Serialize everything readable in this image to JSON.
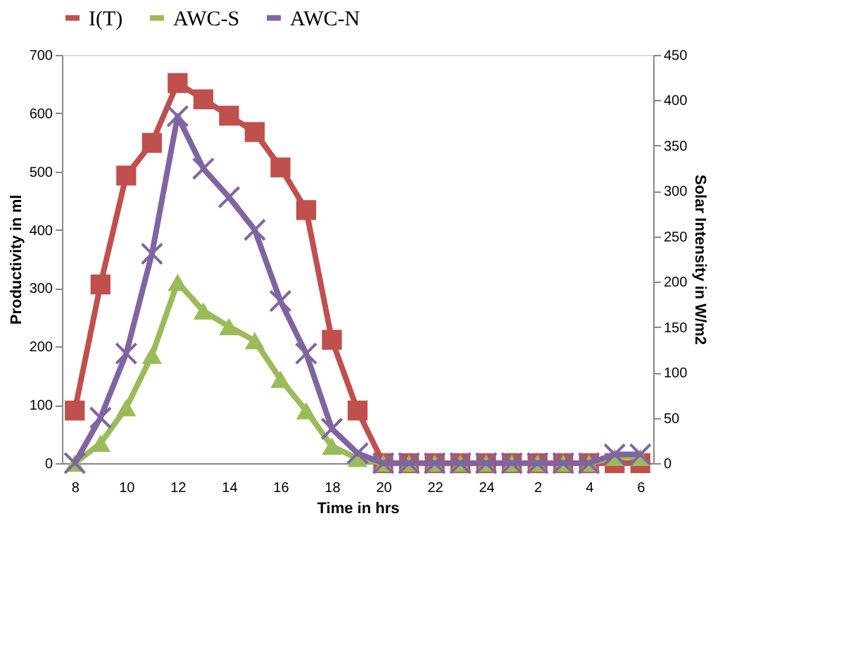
{
  "chart_data": {
    "type": "line",
    "xlabel": "Time in hrs",
    "ylabel": "Productivity in ml",
    "y2label": "Solar Intensity in W/m2",
    "categories": [
      "8",
      null,
      "10",
      null,
      "12",
      null,
      "14",
      null,
      "16",
      null,
      "18",
      null,
      "20",
      null,
      "22",
      null,
      "24",
      null,
      "2",
      null,
      "4",
      null,
      "6"
    ],
    "series": [
      {
        "name": "I(T)",
        "color": "#c0504d",
        "marker": "square",
        "axis": "y2",
        "values": [
          58,
          197,
          317,
          353,
          419,
          401,
          383,
          365,
          326,
          279,
          136,
          58,
          0,
          0,
          0,
          0,
          0,
          0,
          0,
          0,
          0,
          0,
          0
        ]
      },
      {
        "name": "AWC-S",
        "color": "#9bbb59",
        "marker": "triangle",
        "values": [
          0,
          34,
          95,
          185,
          310,
          261,
          234,
          210,
          144,
          90,
          29,
          8,
          0,
          0,
          0,
          0,
          0,
          0,
          0,
          0,
          0,
          10,
          10
        ]
      },
      {
        "name": "AWC-N",
        "color": "#8064a2",
        "marker": "cross",
        "values": [
          0,
          78,
          188,
          359,
          595,
          505,
          456,
          400,
          278,
          188,
          59,
          17,
          0,
          0,
          0,
          0,
          0,
          0,
          0,
          0,
          0,
          15,
          15
        ]
      }
    ],
    "ylim": [
      0,
      700
    ],
    "yticks": [
      0,
      100,
      200,
      300,
      400,
      500,
      600,
      700
    ],
    "y2lim": [
      0,
      450
    ],
    "y2ticks": [
      0,
      50,
      100,
      150,
      200,
      250,
      300,
      350,
      400,
      450
    ],
    "legend": "top",
    "grid": false
  }
}
